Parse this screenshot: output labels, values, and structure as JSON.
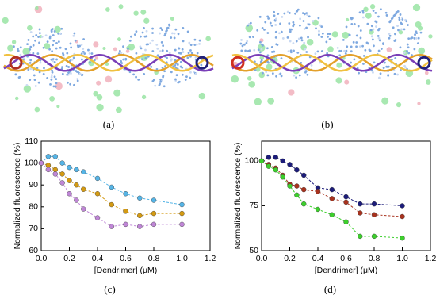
{
  "panels": [
    "(a)",
    "(b)"
  ],
  "chart_data": [
    {
      "type": "line",
      "caption": "(c)",
      "xlabel": "[Dendrimer] (μM)",
      "ylabel": "Normalized fluorescence (%)",
      "x": [
        0,
        0.05,
        0.1,
        0.15,
        0.2,
        0.25,
        0.3,
        0.4,
        0.5,
        0.6,
        0.7,
        0.8,
        1
      ],
      "series": [
        {
          "color": "#55b4e6",
          "values": [
            100,
            103,
            103,
            100,
            98,
            97,
            96,
            93,
            89,
            86,
            84,
            83,
            81
          ]
        },
        {
          "color": "#d49a12",
          "values": [
            100,
            99,
            97,
            95,
            92,
            90,
            88,
            86,
            81,
            78,
            76,
            77,
            77
          ]
        },
        {
          "color": "#bf86d6",
          "values": [
            100,
            97,
            95,
            91,
            86,
            83,
            79,
            75,
            71,
            72,
            71,
            72,
            72
          ]
        }
      ],
      "xlim": [
        0,
        1.2
      ],
      "ylim": [
        60,
        110
      ],
      "xticks": [
        {
          "value": 0,
          "label": "0.0"
        },
        0.2,
        0.4,
        0.6,
        0.8,
        {
          "value": 1,
          "label": "1.0"
        },
        1.2
      ],
      "yticks": [
        60,
        70,
        80,
        90,
        100,
        110
      ]
    },
    {
      "type": "line",
      "caption": "(d)",
      "xlabel": "[Dendrimer] (μM)",
      "ylabel": "Normalized fluorescence (%)",
      "x": [
        0,
        0.05,
        0.1,
        0.15,
        0.2,
        0.25,
        0.3,
        0.4,
        0.5,
        0.6,
        0.7,
        0.8,
        1
      ],
      "series": [
        {
          "color": "#1c1c7a",
          "values": [
            100,
            102,
            102,
            100,
            98,
            95,
            92,
            85,
            84,
            80,
            76,
            76,
            75
          ]
        },
        {
          "color": "#a8321e",
          "values": [
            100,
            98,
            96,
            92,
            87,
            86,
            84,
            83,
            79,
            77,
            71,
            70,
            69
          ]
        },
        {
          "color": "#3ccf2c",
          "values": [
            100,
            97,
            95,
            91,
            86,
            81,
            76,
            73,
            70,
            66,
            58,
            58,
            57
          ]
        }
      ],
      "xlim": [
        0,
        1.2
      ],
      "ylim": [
        50,
        111
      ],
      "xticks": [
        {
          "value": 0,
          "label": "0.0"
        },
        0.2,
        0.4,
        0.6,
        0.8,
        {
          "value": 1,
          "label": "1.0"
        },
        1.2
      ],
      "yticks": [
        50,
        75,
        100
      ]
    }
  ]
}
